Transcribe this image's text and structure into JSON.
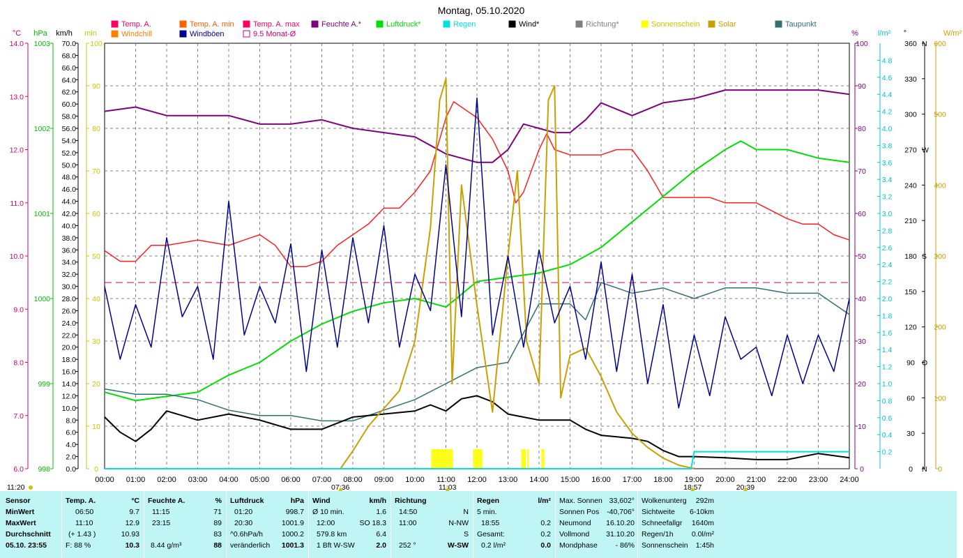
{
  "chart_data": {
    "type": "line",
    "title": "Montag, 05.10.2020",
    "x_ticks": [
      "00:00",
      "01:00",
      "02:00",
      "03:00",
      "04:00",
      "05:00",
      "06:00",
      "07:00",
      "08:00",
      "09:00",
      "10:00",
      "11:00",
      "12:00",
      "13:00",
      "14:00",
      "15:00",
      "16:00",
      "17:00",
      "18:00",
      "19:00",
      "20:00",
      "21:00",
      "22:00",
      "23:00",
      "24:00"
    ],
    "axis_units": {
      "temp": "°C",
      "pressure": "hPa",
      "wind": "km/h",
      "sun": "min",
      "humidity": "%",
      "rain": "l/m²",
      "direction": "°",
      "solar": "W/m²"
    },
    "axes": {
      "temp": {
        "range": [
          6.0,
          14.0
        ],
        "ticks": [
          "6.0",
          "7.0",
          "8.0",
          "9.0",
          "10.0",
          "11.0",
          "12.0",
          "13.0",
          "14.0"
        ],
        "color": "#d4006a"
      },
      "pressure": {
        "range": [
          998,
          1003
        ],
        "ticks": [
          "998",
          "999",
          "1000",
          "1001",
          "1002",
          "1003"
        ],
        "color": "#00c000"
      },
      "wind": {
        "range": [
          0,
          70
        ],
        "ticks": [
          "0.0",
          "2.0",
          "4.0",
          "6.0",
          "8.0",
          "10.0",
          "12.0",
          "14.0",
          "16.0",
          "18.0",
          "20.0",
          "22.0",
          "24.0",
          "26.0",
          "28.0",
          "30.0",
          "32.0",
          "34.0",
          "36.0",
          "38.0",
          "40.0",
          "42.0",
          "44.0",
          "46.0",
          "48.0",
          "50.0",
          "52.0",
          "54.0",
          "56.0",
          "58.0",
          "60.0",
          "62.0",
          "64.0",
          "66.0",
          "68.0",
          "70.0"
        ],
        "color": "#000000"
      },
      "sun": {
        "range": [
          0,
          100
        ],
        "ticks": [
          "0",
          "10",
          "20",
          "30",
          "40",
          "50",
          "60",
          "70",
          "80",
          "90",
          "100"
        ],
        "color": "#c8c800"
      },
      "humidity": {
        "range": [
          0,
          100
        ],
        "ticks": [
          "0",
          "10",
          "20",
          "30",
          "40",
          "50",
          "60",
          "70",
          "80",
          "90",
          "100"
        ],
        "color": "#800080"
      },
      "rain": {
        "range": [
          0,
          5
        ],
        "ticks": [
          "0.0",
          "0.2",
          "0.4",
          "0.6",
          "0.8",
          "1.0",
          "1.2",
          "1.4",
          "1.6",
          "1.8",
          "2.0",
          "2.2",
          "2.4",
          "2.6",
          "2.8",
          "3.0",
          "3.2",
          "3.4",
          "3.6",
          "3.8",
          "4.0",
          "4.2",
          "4.4",
          "4.6",
          "4.8"
        ],
        "color": "#00c8c8"
      },
      "direction": {
        "range": [
          0,
          360
        ],
        "ticks": [
          "0",
          "30",
          "60",
          "90",
          "120",
          "150",
          "180",
          "210",
          "240",
          "270",
          "300",
          "330",
          "360"
        ],
        "labels": {
          "0": "N",
          "90": "O",
          "180": "S",
          "270": "W",
          "360": "N"
        },
        "color": "#808080"
      },
      "solar": {
        "range": [
          0,
          600
        ],
        "ticks": [
          "0",
          "100",
          "200",
          "300",
          "400",
          "500",
          "600"
        ],
        "color": "#c8a000"
      }
    },
    "legend": [
      {
        "name": "Temp. A.",
        "color": "#ff0060"
      },
      {
        "name": "Temp. A. min",
        "color": "#ff6000"
      },
      {
        "name": "Temp. A. max",
        "color": "#ff0060"
      },
      {
        "name": "Feuchte A.*",
        "color": "#800080"
      },
      {
        "name": "Luftdruck*",
        "color": "#00e000"
      },
      {
        "name": "Regen",
        "color": "#00e0e0"
      },
      {
        "name": "Wind*",
        "color": "#000000"
      },
      {
        "name": "Richtung*",
        "color": "#808080"
      },
      {
        "name": "Sonnenschein",
        "color": "#ffff00"
      },
      {
        "name": "Solar",
        "color": "#c8a000"
      },
      {
        "name": "Taupunkt",
        "color": "#307070"
      },
      {
        "name": "Windchill",
        "color": "#ff8000"
      },
      {
        "name": "Windböen",
        "color": "#000090"
      },
      {
        "name": "9.5 Monat-Ø",
        "color": "#d4006a"
      }
    ],
    "series": [
      {
        "name": "Temp. A.",
        "axis": "temp",
        "color": "#ff2020",
        "x": [
          0,
          0.5,
          1,
          1.5,
          2,
          3,
          4,
          4.5,
          5,
          5.5,
          6,
          6.5,
          7,
          7.5,
          8,
          8.5,
          9,
          9.5,
          10,
          10.5,
          11,
          11.25,
          11.5,
          12,
          12.5,
          13,
          13.25,
          13.5,
          14,
          14.25,
          14.5,
          15,
          15.5,
          16,
          16.5,
          17,
          17.5,
          18,
          18.5,
          19,
          19.5,
          20,
          21,
          22,
          22.5,
          23,
          23.5,
          24
        ],
        "y": [
          10.1,
          9.9,
          9.9,
          10.2,
          10.2,
          10.3,
          10.2,
          10.3,
          10.4,
          10.2,
          9.8,
          9.8,
          9.9,
          10.2,
          10.4,
          10.6,
          10.9,
          10.9,
          11.2,
          11.6,
          12.6,
          12.9,
          12.8,
          12.6,
          12.2,
          11.6,
          11.0,
          11.2,
          12.0,
          12.3,
          12.0,
          11.9,
          11.9,
          11.9,
          12.0,
          12.0,
          11.6,
          11.1,
          11.1,
          11.1,
          11.1,
          11.0,
          11.0,
          10.7,
          10.6,
          10.6,
          10.4,
          10.3
        ]
      },
      {
        "name": "Feuchte A.*",
        "axis": "humidity",
        "color": "#800080",
        "x": [
          0,
          1,
          2,
          3,
          4,
          5,
          6,
          7,
          8,
          9,
          10,
          11,
          12,
          12.5,
          13,
          13.5,
          14,
          14.5,
          15,
          15.5,
          16,
          17,
          18,
          19,
          20,
          21,
          22,
          23,
          24
        ],
        "y": [
          84,
          85,
          83,
          83,
          83,
          81,
          81,
          82,
          80,
          79,
          78,
          74,
          72,
          72,
          75,
          81,
          80,
          79,
          79,
          82,
          86,
          83,
          86,
          87,
          89,
          89,
          89,
          89,
          88
        ]
      },
      {
        "name": "Luftdruck*",
        "axis": "pressure",
        "color": "#00e000",
        "x": [
          0,
          1,
          2,
          3,
          4,
          5,
          6,
          7,
          8,
          9,
          10,
          11,
          12,
          13,
          14,
          15,
          16,
          17,
          18,
          19,
          20,
          20.5,
          21,
          22,
          23,
          24
        ],
        "y": [
          998.9,
          998.8,
          998.85,
          998.9,
          999.1,
          999.25,
          999.5,
          999.7,
          999.85,
          999.95,
          1000.0,
          999.9,
          1000.2,
          1000.25,
          1000.3,
          1000.4,
          1000.6,
          1000.9,
          1001.2,
          1001.5,
          1001.75,
          1001.85,
          1001.75,
          1001.75,
          1001.65,
          1001.6
        ]
      },
      {
        "name": "Taupunkt",
        "axis": "temp",
        "color": "#307070",
        "x": [
          0,
          1,
          2,
          3,
          4,
          5,
          6,
          7,
          8,
          9,
          10,
          11,
          12,
          13,
          14,
          15,
          15.5,
          16,
          17,
          18,
          19,
          20,
          21,
          22,
          23,
          24
        ],
        "y": [
          7.5,
          7.4,
          7.4,
          7.3,
          7.1,
          7.0,
          7.0,
          6.9,
          6.9,
          7.1,
          7.3,
          7.6,
          7.9,
          8.0,
          9.1,
          9.1,
          8.8,
          9.5,
          9.3,
          9.4,
          9.2,
          9.4,
          9.4,
          9.3,
          9.3,
          8.9
        ]
      },
      {
        "name": "Wind*",
        "axis": "wind",
        "color": "#000000",
        "x": [
          0,
          0.5,
          1,
          1.5,
          2,
          3,
          4,
          5,
          6,
          7,
          8,
          9,
          10,
          10.5,
          11,
          11.5,
          12,
          12.5,
          13,
          14,
          15,
          15.5,
          16,
          17,
          17.5,
          18,
          18.5,
          19,
          20,
          21,
          22,
          23,
          24
        ],
        "y": [
          8.5,
          6.0,
          4.5,
          6.5,
          9.5,
          8.0,
          9.0,
          8.0,
          6.5,
          6.5,
          8.5,
          9.0,
          9.5,
          10.5,
          9.5,
          11.5,
          12.0,
          11.0,
          9.0,
          8.0,
          8.0,
          6.5,
          5.5,
          5.0,
          4.5,
          3.0,
          2.0,
          2.0,
          1.8,
          1.5,
          1.5,
          2.5,
          1.8
        ]
      },
      {
        "name": "Solar",
        "axis": "solar",
        "color": "#c8a000",
        "x": [
          7.6,
          8,
          8.5,
          9,
          9.5,
          10,
          10.5,
          10.8,
          11,
          11.2,
          11.5,
          12,
          12.5,
          13,
          13.3,
          13.6,
          14,
          14.3,
          14.5,
          14.7,
          15,
          15.5,
          16,
          16.5,
          17,
          17.5,
          18,
          18.5,
          19
        ],
        "y": [
          0,
          25,
          60,
          85,
          110,
          180,
          340,
          520,
          550,
          120,
          400,
          230,
          80,
          300,
          420,
          180,
          120,
          520,
          540,
          100,
          160,
          170,
          130,
          80,
          50,
          30,
          15,
          5,
          0
        ]
      },
      {
        "name": "Windböen",
        "axis": "wind",
        "color": "#000090",
        "x": [
          0,
          0.5,
          1,
          1.5,
          2,
          2.5,
          3,
          3.5,
          4,
          4.5,
          5,
          5.5,
          6,
          6.5,
          7,
          7.5,
          8,
          8.5,
          9,
          9.5,
          10,
          10.5,
          11,
          11.5,
          12,
          12.5,
          13,
          13.5,
          14,
          14.5,
          15,
          15.5,
          16,
          16.5,
          17,
          17.5,
          18,
          18.5,
          19,
          19.5,
          20,
          20.5,
          21,
          21.5,
          22,
          22.5,
          23,
          23.5,
          24
        ],
        "y": [
          30,
          18,
          27,
          20,
          38,
          25,
          30,
          18,
          44,
          22,
          30,
          24,
          37,
          16,
          36,
          20,
          38,
          24,
          40,
          20,
          32,
          26,
          50,
          25,
          61,
          22,
          35,
          20,
          36,
          24,
          30,
          18,
          34,
          16,
          32,
          14,
          27,
          10,
          22,
          12,
          25,
          18,
          20,
          12,
          22,
          14,
          22,
          16,
          28
        ]
      },
      {
        "name": "Regen",
        "axis": "rain",
        "color": "#00e0e0",
        "x": [
          0,
          18.9,
          19,
          24
        ],
        "y": [
          0,
          0,
          0.2,
          0.2
        ]
      },
      {
        "name": "9.5 Monat-Ø",
        "axis": "temp",
        "color": "#d4006a",
        "x": [
          0,
          24
        ],
        "y": [
          9.5,
          9.5
        ]
      }
    ],
    "sun_bars_hours": [
      [
        10.55,
        11.25
      ],
      [
        11.9,
        12.2
      ],
      [
        13.45,
        13.55
      ],
      [
        13.65,
        13.7
      ],
      [
        14.1,
        14.2
      ]
    ],
    "markers": [
      {
        "label": "07:36",
        "hour": 7.6
      },
      {
        "label": "11:03",
        "hour": 11.05
      },
      {
        "label": "18:57",
        "hour": 18.95
      },
      {
        "label": "20:39",
        "hour": 20.65
      }
    ],
    "left_marker": "11:20"
  },
  "footer": {
    "sensor": {
      "h": "Sensor",
      "min": "MinWert",
      "max": "MaxWert",
      "avg": "Durchschnitt",
      "ts": "05.10. 23:55"
    },
    "temp": {
      "h": "Temp. A.",
      "u": "°C",
      "min_t": "06:50",
      "min_v": "9.7",
      "max_t": "11:10",
      "max_v": "12.9",
      "avg_t": "(+ 1.43 )",
      "avg_v": "10.93",
      "cur_t": "F: 88 %",
      "cur_v": "10.3"
    },
    "hum": {
      "h": "Feuchte A.",
      "u": "%",
      "min_t": "11:15",
      "min_v": "71",
      "max_t": "23:15",
      "max_v": "89",
      "avg_v": "83",
      "cur_t": "8.44 g/m³",
      "cur_v": "88"
    },
    "press": {
      "h": "Luftdruck",
      "u": "hPa",
      "min_t": "01:20",
      "min_v": "998.7",
      "max_t": "20:30",
      "max_v": "1001.9",
      "avg_t": "^0.6hPa/h",
      "avg_v": "1000.2",
      "cur_t": "veränderlich",
      "cur_v": "1001.3"
    },
    "wind": {
      "h": "Wind",
      "u": "km/h",
      "min_t": "Ø 10 min.",
      "min_v": "1.6",
      "max_t": "12:00",
      "max_v": "SO 18.3",
      "avg_t": "579.8 km",
      "avg_v": "6.4",
      "cur_t": "1 Bft W-SW",
      "cur_v": "2.0"
    },
    "dir": {
      "h": "Richtung",
      "min_t": "14:50",
      "min_v": "N",
      "max_t": "11:00",
      "max_v": "N-NW",
      "avg_v": "S",
      "cur_t": "252 °",
      "cur_v": "W-SW"
    },
    "rain": {
      "h": "Regen",
      "u": "l/m²",
      "min_t": "5 min.",
      "max_t": "18:55",
      "max_v": "0.2",
      "avg_t": "Gesamt:",
      "avg_v": "0.2",
      "cur_t": "0.2 l/m²",
      "cur_v": "0.0"
    },
    "astro": {
      "l1": "Max. Sonnen",
      "v1": "33,602°",
      "l2": "Sonnen Pos",
      "v2": "-40,706°",
      "l3": "Neumond",
      "v3": "16.10.20",
      "l4": "Vollmond",
      "v4": "31.10.20",
      "l5": "Mondphase",
      "v5": "- 86%"
    },
    "misc": {
      "l1": "Wolkenunterg",
      "v1": "292m",
      "l2": "Sichtweite",
      "v2": "6-10km",
      "l3": "Schneefallgr",
      "v3": "1640m",
      "l4": "Regen/1h",
      "v4": "0.0l/m²",
      "l5": "Sonnenschein",
      "v5": "1:45h"
    }
  }
}
